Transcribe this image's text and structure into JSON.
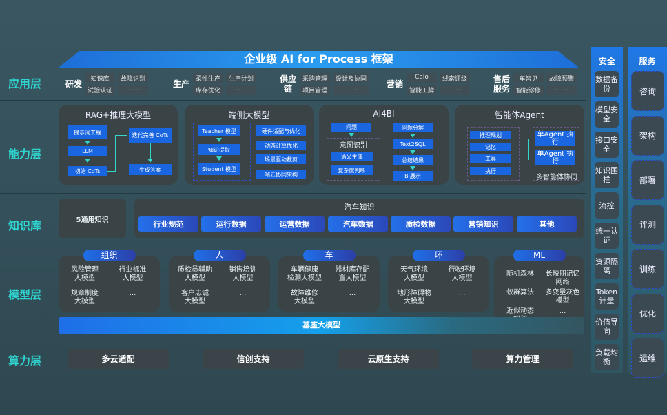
{
  "title": "企业级 AI for Process 框架",
  "layers": {
    "app": "应用层",
    "ability": "能力层",
    "knowledge": "知识库",
    "model": "模型层",
    "compute": "算力层"
  },
  "apps": [
    {
      "cat": "研发",
      "items": [
        "知识库",
        "故障识别",
        "试验认证",
        "... ..."
      ]
    },
    {
      "cat": "生产",
      "items": [
        "柔性生产",
        "生产计划",
        "库存优化",
        "... ..."
      ]
    },
    {
      "cat": "供应链",
      "items": [
        "采购管理",
        "设计及协同",
        "项目管理",
        "... ..."
      ]
    },
    {
      "cat": "营销",
      "items": [
        "Calo",
        "线索评级",
        "智能工牌",
        "... ..."
      ]
    },
    {
      "cat": "售后服务",
      "items": [
        "车智见",
        "故障预警",
        "智能诊修",
        "... ..."
      ]
    }
  ],
  "ability": {
    "rag": {
      "title": "RAG+推理大模型",
      "prompt": "提示词工程",
      "llm": "LLM",
      "init": "初始 CoTs",
      "iter": "迭代完善 CoTs",
      "answer": "生成答案"
    },
    "edge": {
      "title": "端侧大模型",
      "teacher": "Teacher 模型",
      "extract": "知识提取",
      "student": "Student 模型",
      "items": [
        "硬件适配与优化",
        "动态计算优化",
        "场景驱动裁剪",
        "端云协同架构"
      ]
    },
    "ai4bi": {
      "title": "AI4BI",
      "question": "问题",
      "intent": "意图识别",
      "semantic": "语义生成",
      "complexity": "复杂度判断",
      "decompose": "问题分解",
      "sql": "Text2SQL",
      "summary": "总结结果",
      "bi": "BI展示"
    },
    "agent": {
      "title": "智能体Agent",
      "items": [
        "推理规划",
        "记忆",
        "工具",
        "执行"
      ],
      "exec1": "单Agent 执行",
      "exec2": "单Agent 执行",
      "multi": "多智能体协同"
    }
  },
  "knowledge": {
    "general": "5通用知识",
    "auto_title": "汽车知识",
    "items": [
      "行业规范",
      "运行数据",
      "运营数据",
      "汽车数据",
      "质检数据",
      "营销知识",
      "其他"
    ]
  },
  "models": [
    {
      "tag": "组织",
      "items": [
        "风险管理\n大模型",
        "行业标准\n大模型",
        "规章制度\n大模型",
        "..."
      ]
    },
    {
      "tag": "人",
      "items": [
        "质检员辅助\n大模型",
        "销售培训\n大模型",
        "客户忠诚\n大模型",
        "..."
      ]
    },
    {
      "tag": "车",
      "items": [
        "车辆健康\n检测大模型",
        "器材库存配\n置大模型",
        "故障维修\n大模型",
        "..."
      ]
    },
    {
      "tag": "环",
      "items": [
        "天气环境\n大模型",
        "行驶环境\n大模型",
        "地形障碍物\n大模型",
        "..."
      ]
    },
    {
      "tag": "ML",
      "items": [
        "随机森林",
        "长短期记忆\n网络",
        "蚁群算法",
        "多变量灰色\n模型",
        "近似动态\n规划",
        "..."
      ]
    }
  ],
  "base_model": "基座大模型",
  "compute": [
    "多云适配",
    "信创支持",
    "云原生支持",
    "算力管理"
  ],
  "security": {
    "title": "安全",
    "items": [
      "数据备份",
      "模型安全",
      "接口安全",
      "知识围栏",
      "流控",
      "统一认证",
      "资源隔离",
      "Token计量",
      "价值导向",
      "负载均衡"
    ]
  },
  "service": {
    "title": "服务",
    "items": [
      "咨询",
      "架构",
      "部署",
      "评测",
      "训练",
      "优化",
      "运维"
    ]
  }
}
